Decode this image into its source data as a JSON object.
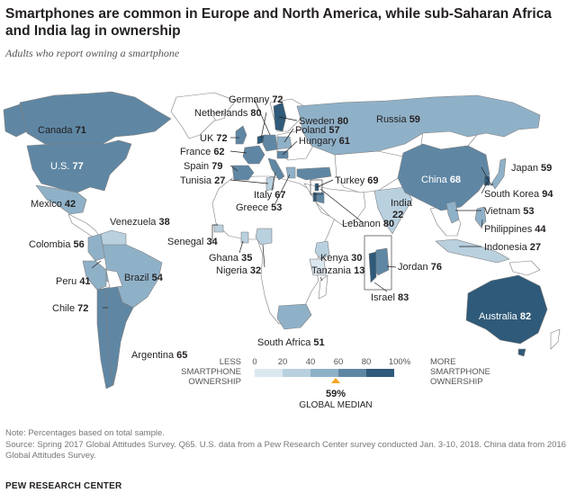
{
  "title": "Smartphones are common in Europe and North America, while sub-Saharan Africa and India lag in ownership",
  "subtitle": "Adults who report owning a smartphone",
  "colors": {
    "ocean": "#ffffff",
    "land_no_data": "#ffffff",
    "border": "#7d7d7d",
    "bins": [
      "#dbe7ef",
      "#b9d0df",
      "#8fb1c8",
      "#5f87a4",
      "#2f5a79"
    ],
    "median_marker": "#f5a623"
  },
  "legend": {
    "low_label": [
      "LESS",
      "SMARTPHONE",
      "OWNERSHIP"
    ],
    "high_label": [
      "MORE",
      "SMARTPHONE",
      "OWNERSHIP"
    ],
    "ticks": [
      "0",
      "20",
      "40",
      "60",
      "80",
      "100%"
    ],
    "median_value": "59%",
    "median_label": "GLOBAL MEDIAN"
  },
  "countries": [
    {
      "name": "Canada",
      "value": 71
    },
    {
      "name": "U.S.",
      "value": 77
    },
    {
      "name": "Mexico",
      "value": 42
    },
    {
      "name": "Venezuela",
      "value": 38
    },
    {
      "name": "Colombia",
      "value": 56
    },
    {
      "name": "Brazil",
      "value": 54
    },
    {
      "name": "Peru",
      "value": 41
    },
    {
      "name": "Chile",
      "value": 72
    },
    {
      "name": "Argentina",
      "value": 65
    },
    {
      "name": "Germany",
      "value": 72
    },
    {
      "name": "Netherlands",
      "value": 80
    },
    {
      "name": "UK",
      "value": 72
    },
    {
      "name": "France",
      "value": 62
    },
    {
      "name": "Spain",
      "value": 79
    },
    {
      "name": "Tunisia",
      "value": 27
    },
    {
      "name": "Italy",
      "value": 67
    },
    {
      "name": "Greece",
      "value": 53
    },
    {
      "name": "Sweden",
      "value": 80
    },
    {
      "name": "Poland",
      "value": 57
    },
    {
      "name": "Hungary",
      "value": 61
    },
    {
      "name": "Russia",
      "value": 59
    },
    {
      "name": "Turkey",
      "value": 69
    },
    {
      "name": "Senegal",
      "value": 34
    },
    {
      "name": "Ghana",
      "value": 35
    },
    {
      "name": "Nigeria",
      "value": 32
    },
    {
      "name": "Kenya",
      "value": 30
    },
    {
      "name": "Tanzania",
      "value": 13
    },
    {
      "name": "South Africa",
      "value": 51
    },
    {
      "name": "Lebanon",
      "value": 80
    },
    {
      "name": "Jordan",
      "value": 76
    },
    {
      "name": "Israel",
      "value": 83
    },
    {
      "name": "India",
      "value": 22
    },
    {
      "name": "China",
      "value": 68
    },
    {
      "name": "Japan",
      "value": 59
    },
    {
      "name": "South Korea",
      "value": 94
    },
    {
      "name": "Vietnam",
      "value": 53
    },
    {
      "name": "Philippines",
      "value": 44
    },
    {
      "name": "Indonesia",
      "value": 27
    },
    {
      "name": "Australia",
      "value": 82
    }
  ],
  "note": "Note: Percentages based on total sample.",
  "source": "Source: Spring 2017 Global Attitudes Survey. Q65. U.S. data from a Pew Research Center survey conducted Jan. 3-10, 2018. China data from 2016 Global Attitudes Survey.",
  "brand": "PEW RESEARCH CENTER"
}
